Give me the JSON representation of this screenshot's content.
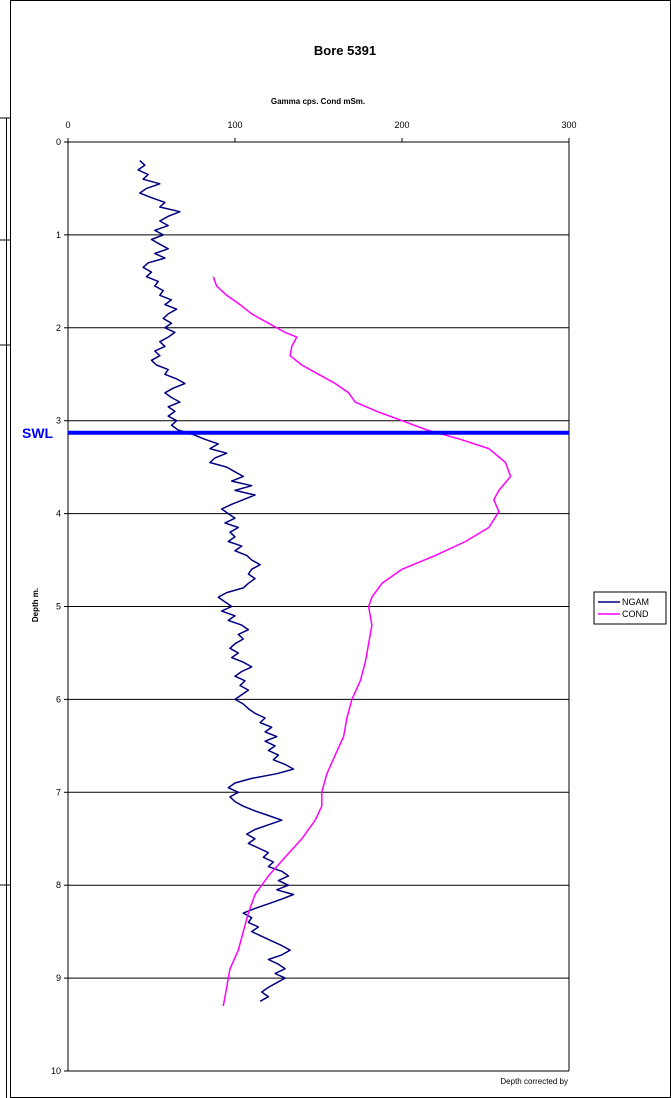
{
  "chart_data": {
    "type": "line",
    "title": "Bore 5391",
    "xlabel": "Gamma cps. Cond mSm.",
    "ylabel": "Depth m.",
    "x_axis_position": "top",
    "y_axis_inverted": true,
    "xlim": [
      0,
      300
    ],
    "ylim": [
      0,
      10
    ],
    "x_ticks": [
      "0",
      "100",
      "200",
      "300"
    ],
    "y_ticks": [
      "0",
      "1",
      "2",
      "3",
      "4",
      "5",
      "6",
      "7",
      "8",
      "9",
      "10"
    ],
    "grid": "horizontal",
    "legend_position": "right",
    "annotation": {
      "label": "SWL",
      "depth": 3.13,
      "color": "#0000ff"
    },
    "footnote": "Depth corrected by",
    "series": [
      {
        "name": "NGAM",
        "color": "#000080",
        "points": [
          [
            43,
            0.2
          ],
          [
            46,
            0.25
          ],
          [
            42,
            0.3
          ],
          [
            48,
            0.35
          ],
          [
            45,
            0.4
          ],
          [
            55,
            0.45
          ],
          [
            47,
            0.5
          ],
          [
            43,
            0.55
          ],
          [
            50,
            0.6
          ],
          [
            58,
            0.65
          ],
          [
            55,
            0.7
          ],
          [
            67,
            0.75
          ],
          [
            60,
            0.8
          ],
          [
            55,
            0.85
          ],
          [
            60,
            0.9
          ],
          [
            52,
            0.95
          ],
          [
            57,
            1.0
          ],
          [
            50,
            1.05
          ],
          [
            55,
            1.1
          ],
          [
            60,
            1.15
          ],
          [
            52,
            1.2
          ],
          [
            58,
            1.25
          ],
          [
            48,
            1.3
          ],
          [
            45,
            1.35
          ],
          [
            50,
            1.4
          ],
          [
            47,
            1.45
          ],
          [
            54,
            1.5
          ],
          [
            52,
            1.55
          ],
          [
            57,
            1.6
          ],
          [
            55,
            1.65
          ],
          [
            62,
            1.7
          ],
          [
            58,
            1.75
          ],
          [
            65,
            1.8
          ],
          [
            60,
            1.85
          ],
          [
            57,
            1.9
          ],
          [
            62,
            1.95
          ],
          [
            58,
            2.0
          ],
          [
            64,
            2.05
          ],
          [
            60,
            2.1
          ],
          [
            55,
            2.15
          ],
          [
            58,
            2.2
          ],
          [
            52,
            2.25
          ],
          [
            55,
            2.3
          ],
          [
            50,
            2.35
          ],
          [
            53,
            2.4
          ],
          [
            60,
            2.45
          ],
          [
            58,
            2.5
          ],
          [
            65,
            2.55
          ],
          [
            70,
            2.6
          ],
          [
            63,
            2.65
          ],
          [
            58,
            2.7
          ],
          [
            62,
            2.75
          ],
          [
            67,
            2.8
          ],
          [
            60,
            2.85
          ],
          [
            64,
            2.9
          ],
          [
            60,
            2.95
          ],
          [
            65,
            3.0
          ],
          [
            62,
            3.05
          ],
          [
            66,
            3.1
          ],
          [
            75,
            3.15
          ],
          [
            82,
            3.2
          ],
          [
            90,
            3.25
          ],
          [
            85,
            3.3
          ],
          [
            95,
            3.35
          ],
          [
            88,
            3.4
          ],
          [
            85,
            3.45
          ],
          [
            95,
            3.5
          ],
          [
            100,
            3.55
          ],
          [
            105,
            3.6
          ],
          [
            98,
            3.65
          ],
          [
            110,
            3.7
          ],
          [
            100,
            3.75
          ],
          [
            112,
            3.8
          ],
          [
            105,
            3.85
          ],
          [
            98,
            3.9
          ],
          [
            92,
            3.95
          ],
          [
            96,
            4.0
          ],
          [
            100,
            4.05
          ],
          [
            94,
            4.1
          ],
          [
            102,
            4.15
          ],
          [
            97,
            4.2
          ],
          [
            100,
            4.25
          ],
          [
            96,
            4.3
          ],
          [
            104,
            4.35
          ],
          [
            100,
            4.4
          ],
          [
            107,
            4.45
          ],
          [
            110,
            4.5
          ],
          [
            115,
            4.55
          ],
          [
            110,
            4.6
          ],
          [
            108,
            4.65
          ],
          [
            112,
            4.7
          ],
          [
            108,
            4.75
          ],
          [
            105,
            4.8
          ],
          [
            95,
            4.85
          ],
          [
            90,
            4.9
          ],
          [
            94,
            4.95
          ],
          [
            98,
            5.0
          ],
          [
            92,
            5.05
          ],
          [
            100,
            5.1
          ],
          [
            96,
            5.15
          ],
          [
            104,
            5.2
          ],
          [
            108,
            5.25
          ],
          [
            102,
            5.3
          ],
          [
            105,
            5.35
          ],
          [
            100,
            5.4
          ],
          [
            97,
            5.45
          ],
          [
            102,
            5.5
          ],
          [
            98,
            5.55
          ],
          [
            105,
            5.6
          ],
          [
            110,
            5.65
          ],
          [
            104,
            5.7
          ],
          [
            100,
            5.75
          ],
          [
            106,
            5.8
          ],
          [
            103,
            5.85
          ],
          [
            108,
            5.9
          ],
          [
            104,
            5.95
          ],
          [
            100,
            6.0
          ],
          [
            105,
            6.05
          ],
          [
            108,
            6.1
          ],
          [
            112,
            6.15
          ],
          [
            118,
            6.2
          ],
          [
            115,
            6.25
          ],
          [
            122,
            6.3
          ],
          [
            118,
            6.35
          ],
          [
            125,
            6.4
          ],
          [
            118,
            6.45
          ],
          [
            124,
            6.5
          ],
          [
            120,
            6.55
          ],
          [
            126,
            6.6
          ],
          [
            123,
            6.65
          ],
          [
            130,
            6.7
          ],
          [
            135,
            6.75
          ],
          [
            125,
            6.8
          ],
          [
            110,
            6.85
          ],
          [
            100,
            6.9
          ],
          [
            96,
            6.95
          ],
          [
            102,
            7.0
          ],
          [
            97,
            7.05
          ],
          [
            100,
            7.1
          ],
          [
            105,
            7.15
          ],
          [
            112,
            7.2
          ],
          [
            120,
            7.25
          ],
          [
            128,
            7.3
          ],
          [
            120,
            7.35
          ],
          [
            112,
            7.4
          ],
          [
            107,
            7.45
          ],
          [
            112,
            7.5
          ],
          [
            108,
            7.55
          ],
          [
            114,
            7.6
          ],
          [
            120,
            7.65
          ],
          [
            117,
            7.7
          ],
          [
            123,
            7.75
          ],
          [
            120,
            7.8
          ],
          [
            128,
            7.85
          ],
          [
            132,
            7.9
          ],
          [
            126,
            7.95
          ],
          [
            132,
            8.0
          ],
          [
            125,
            8.05
          ],
          [
            135,
            8.1
          ],
          [
            128,
            8.15
          ],
          [
            120,
            8.2
          ],
          [
            112,
            8.25
          ],
          [
            105,
            8.3
          ],
          [
            110,
            8.35
          ],
          [
            108,
            8.4
          ],
          [
            114,
            8.45
          ],
          [
            110,
            8.5
          ],
          [
            116,
            8.55
          ],
          [
            122,
            8.6
          ],
          [
            128,
            8.65
          ],
          [
            133,
            8.7
          ],
          [
            128,
            8.75
          ],
          [
            120,
            8.8
          ],
          [
            126,
            8.85
          ],
          [
            130,
            8.9
          ],
          [
            124,
            8.95
          ],
          [
            130,
            9.0
          ],
          [
            125,
            9.05
          ],
          [
            120,
            9.1
          ],
          [
            116,
            9.15
          ],
          [
            120,
            9.2
          ],
          [
            115,
            9.25
          ]
        ]
      },
      {
        "name": "COND",
        "color": "#ff00ff",
        "points": [
          [
            87,
            1.45
          ],
          [
            89,
            1.55
          ],
          [
            95,
            1.65
          ],
          [
            103,
            1.75
          ],
          [
            110,
            1.85
          ],
          [
            120,
            1.95
          ],
          [
            130,
            2.05
          ],
          [
            137,
            2.1
          ],
          [
            134,
            2.2
          ],
          [
            133,
            2.3
          ],
          [
            140,
            2.4
          ],
          [
            150,
            2.5
          ],
          [
            160,
            2.6
          ],
          [
            168,
            2.7
          ],
          [
            172,
            2.8
          ],
          [
            185,
            2.9
          ],
          [
            200,
            3.0
          ],
          [
            215,
            3.1
          ],
          [
            235,
            3.2
          ],
          [
            252,
            3.3
          ],
          [
            262,
            3.45
          ],
          [
            265,
            3.6
          ],
          [
            258,
            3.75
          ],
          [
            255,
            3.85
          ],
          [
            258,
            3.98
          ],
          [
            252,
            4.15
          ],
          [
            238,
            4.3
          ],
          [
            220,
            4.45
          ],
          [
            200,
            4.6
          ],
          [
            188,
            4.75
          ],
          [
            182,
            4.9
          ],
          [
            180,
            5.0
          ],
          [
            182,
            5.2
          ],
          [
            180,
            5.4
          ],
          [
            178,
            5.6
          ],
          [
            175,
            5.8
          ],
          [
            170,
            6.0
          ],
          [
            167,
            6.2
          ],
          [
            165,
            6.4
          ],
          [
            160,
            6.6
          ],
          [
            155,
            6.8
          ],
          [
            152,
            7.0
          ],
          [
            152,
            7.15
          ],
          [
            148,
            7.3
          ],
          [
            140,
            7.5
          ],
          [
            130,
            7.7
          ],
          [
            120,
            7.9
          ],
          [
            112,
            8.1
          ],
          [
            108,
            8.3
          ],
          [
            105,
            8.5
          ],
          [
            102,
            8.7
          ],
          [
            97,
            8.9
          ],
          [
            95,
            9.1
          ],
          [
            93,
            9.3
          ]
        ]
      }
    ]
  }
}
